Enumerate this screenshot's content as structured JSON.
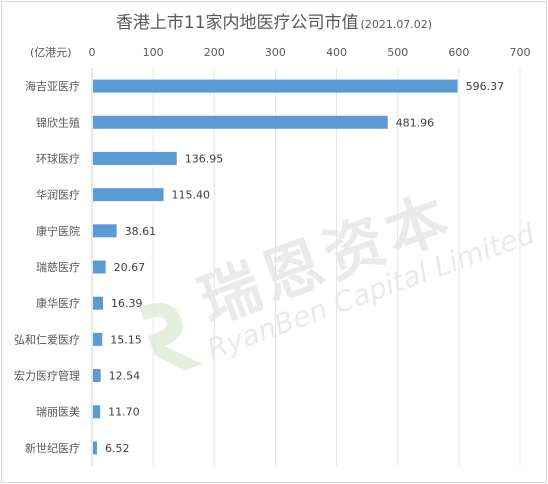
{
  "chart_data": {
    "type": "bar",
    "orientation": "horizontal",
    "title": "香港上市11家内地医疗公司市值",
    "subtitle": "(2021.07.02)",
    "unit_label": "(亿港元)",
    "categories": [
      "海吉亚医疗",
      "锦欣生殖",
      "环球医疗",
      "华润医疗",
      "康宁医院",
      "瑞慈医疗",
      "康华医疗",
      "弘和仁爱医疗",
      "宏力医疗管理",
      "瑞丽医美",
      "新世纪医疗"
    ],
    "values": [
      596.37,
      481.96,
      136.95,
      115.4,
      38.61,
      20.67,
      16.39,
      15.15,
      12.54,
      11.7,
      6.52
    ],
    "value_labels": [
      "596.37",
      "481.96",
      "136.95",
      "115.40",
      "38.61",
      "20.67",
      "16.39",
      "15.15",
      "12.54",
      "11.70",
      "6.52"
    ],
    "xlim": [
      0,
      700
    ],
    "x_ticks": [
      "0",
      "100",
      "200",
      "300",
      "400",
      "500",
      "600",
      "700"
    ],
    "x_axis_position": "top",
    "grid": true,
    "bar_color": "#5b9bd5"
  },
  "watermark": {
    "text_cn": "瑞恩资本",
    "text_en": "RyanBen Capital Limited",
    "logo_icon": "leaf-logo-icon"
  }
}
